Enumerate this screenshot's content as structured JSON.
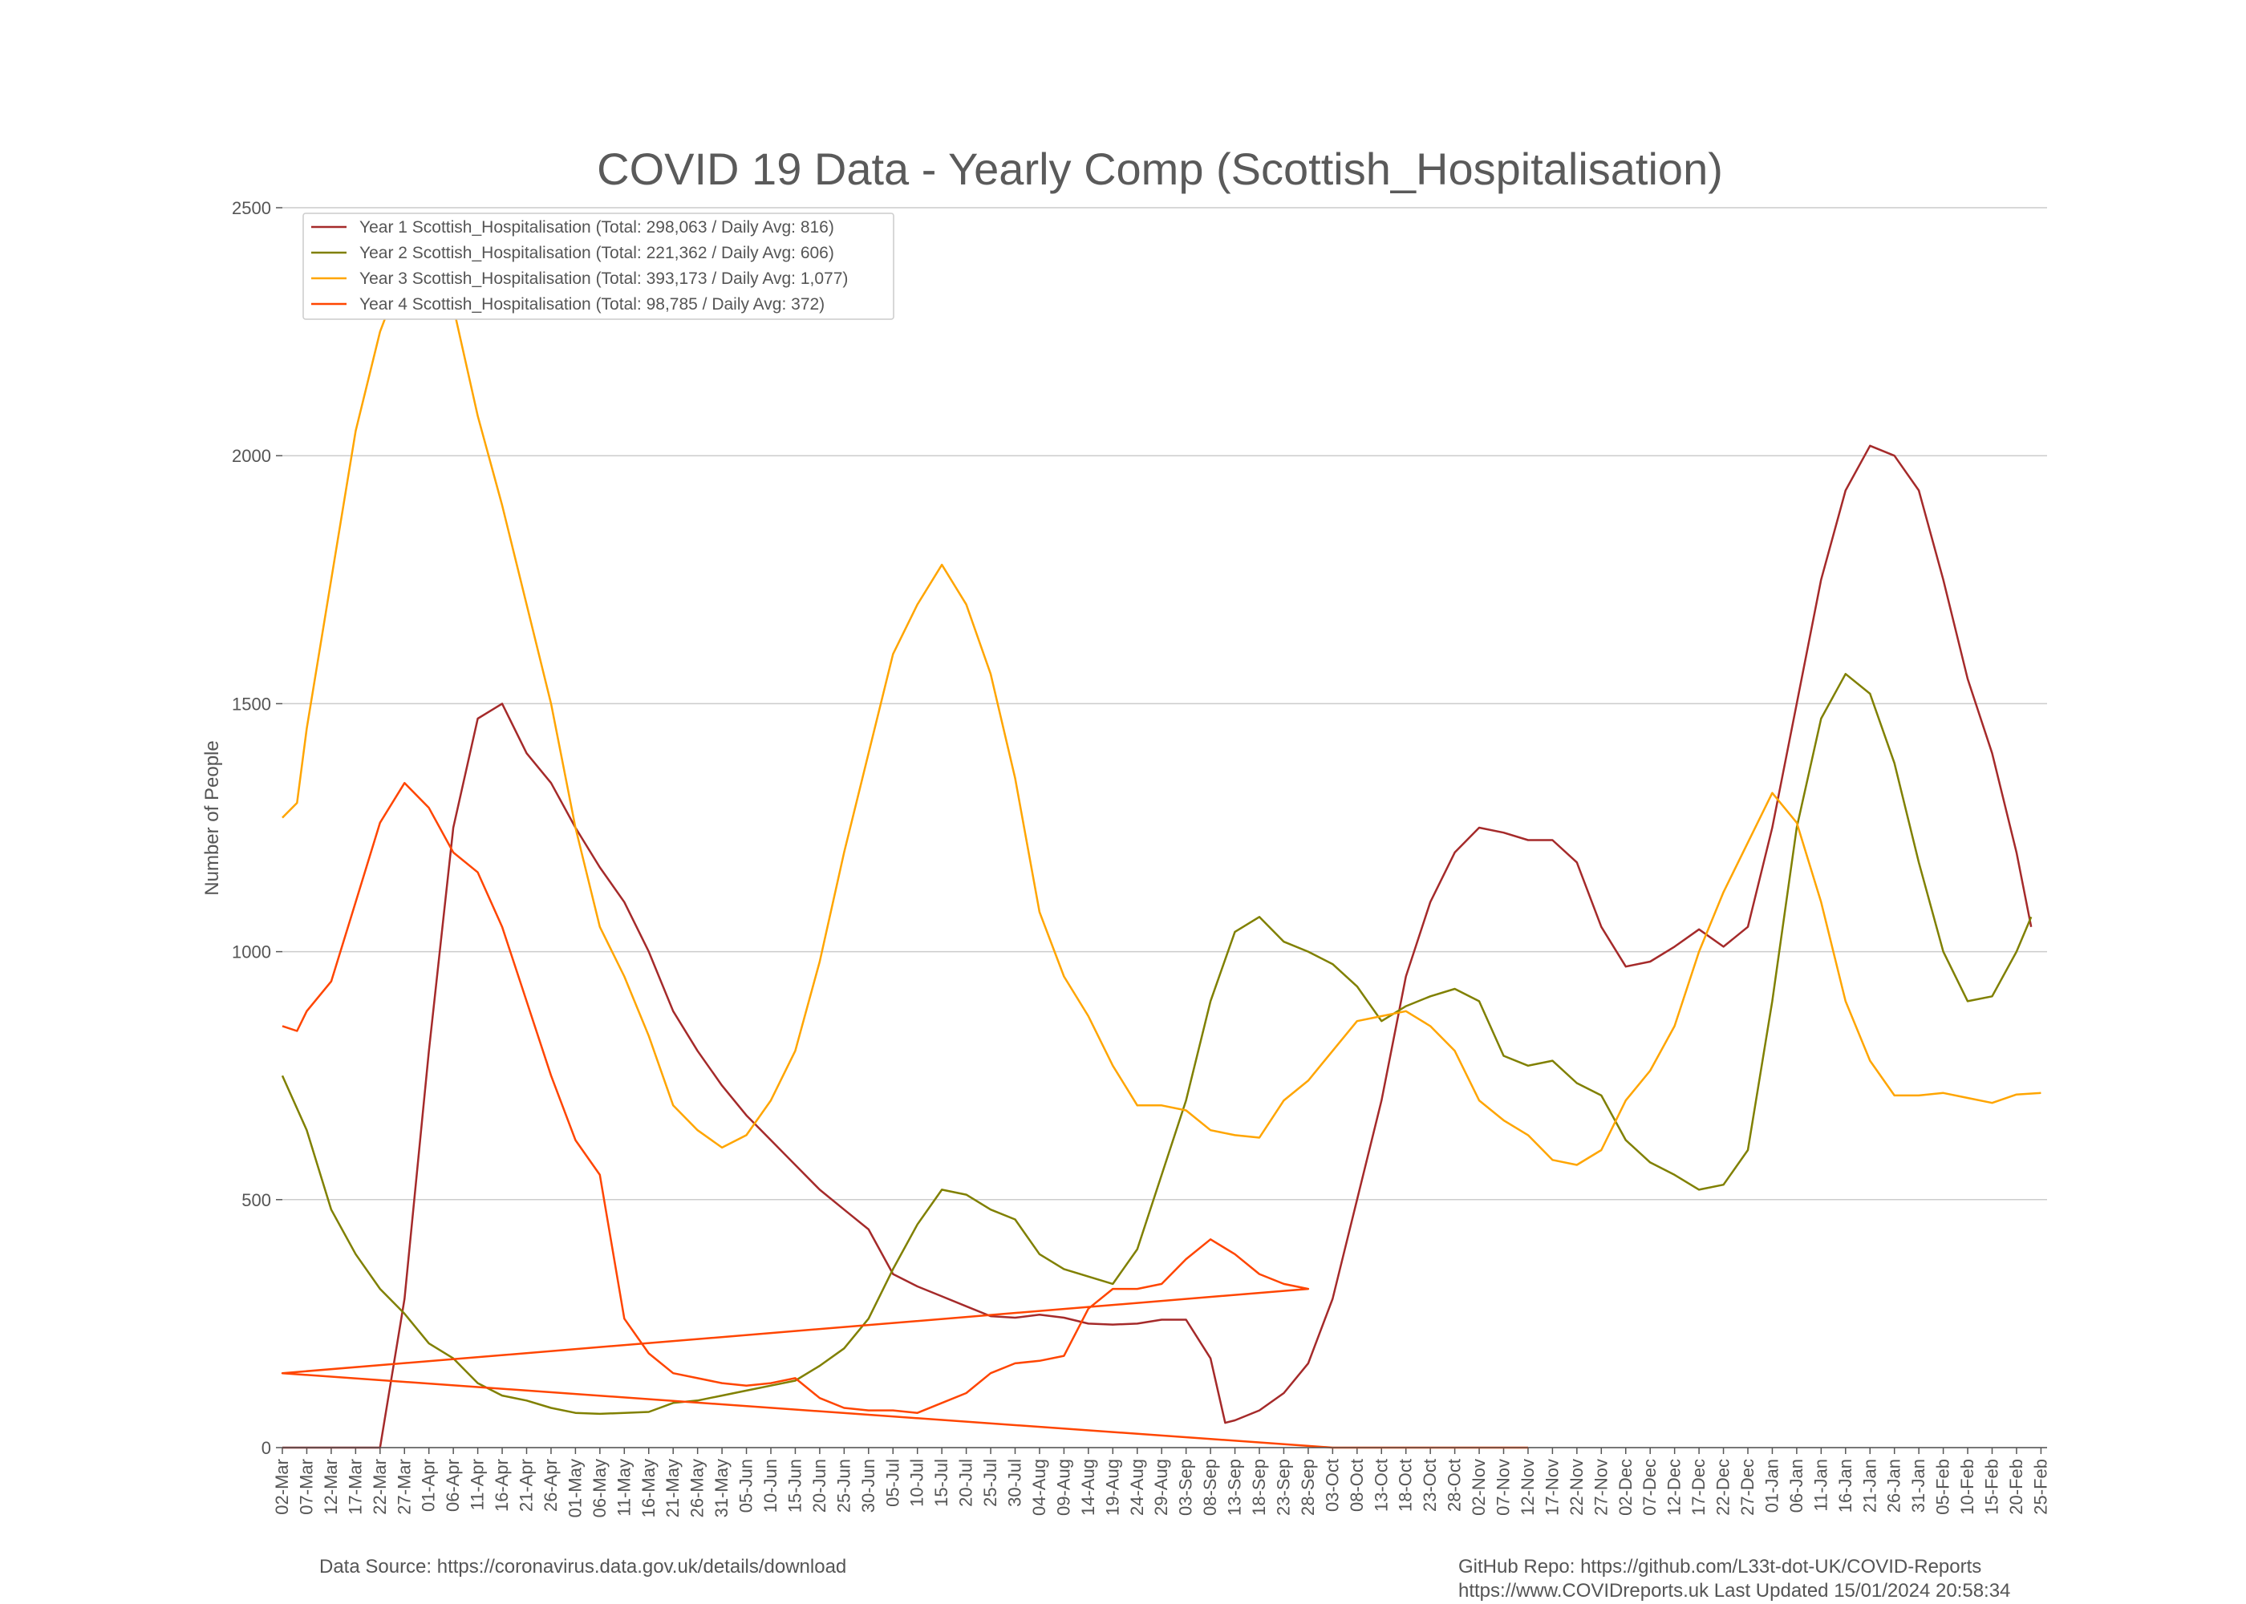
{
  "chart_data": {
    "type": "line",
    "title": "COVID 19 Data - Yearly Comp (Scottish_Hospitalisation)",
    "xlabel": "",
    "ylabel": "Number of People",
    "ylim": [
      0,
      2500
    ],
    "yticks": [
      0,
      500,
      1000,
      1500,
      2000,
      2500
    ],
    "grid": "horizontal",
    "legend_position": "top-left",
    "x_tick_labels": [
      "02-Mar",
      "07-Mar",
      "12-Mar",
      "17-Mar",
      "22-Mar",
      "27-Mar",
      "01-Apr",
      "06-Apr",
      "11-Apr",
      "16-Apr",
      "21-Apr",
      "26-Apr",
      "01-May",
      "06-May",
      "11-May",
      "16-May",
      "21-May",
      "26-May",
      "31-May",
      "05-Jun",
      "10-Jun",
      "15-Jun",
      "20-Jun",
      "25-Jun",
      "30-Jun",
      "05-Jul",
      "10-Jul",
      "15-Jul",
      "20-Jul",
      "25-Jul",
      "30-Jul",
      "04-Aug",
      "09-Aug",
      "14-Aug",
      "19-Aug",
      "24-Aug",
      "29-Aug",
      "03-Sep",
      "08-Sep",
      "13-Sep",
      "18-Sep",
      "23-Sep",
      "28-Sep",
      "03-Oct",
      "08-Oct",
      "13-Oct",
      "18-Oct",
      "23-Oct",
      "28-Oct",
      "02-Nov",
      "07-Nov",
      "12-Nov",
      "17-Nov",
      "22-Nov",
      "27-Nov",
      "02-Dec",
      "07-Dec",
      "12-Dec",
      "17-Dec",
      "22-Dec",
      "27-Dec",
      "01-Jan",
      "06-Jan",
      "11-Jan",
      "16-Jan",
      "21-Jan",
      "26-Jan",
      "31-Jan",
      "05-Feb",
      "10-Feb",
      "15-Feb",
      "20-Feb",
      "25-Feb"
    ],
    "series": [
      {
        "name": "Year 1 Scottish_Hospitalisation (Total: 298,063 / Daily Avg: 816)",
        "color": "#a52a2a",
        "points": [
          [
            "02-Mar",
            0
          ],
          [
            "22-Mar",
            0
          ],
          [
            "27-Mar",
            300
          ],
          [
            "01-Apr",
            800
          ],
          [
            "06-Apr",
            1250
          ],
          [
            "11-Apr",
            1470
          ],
          [
            "16-Apr",
            1500
          ],
          [
            "21-Apr",
            1400
          ],
          [
            "26-Apr",
            1340
          ],
          [
            "01-May",
            1250
          ],
          [
            "06-May",
            1170
          ],
          [
            "11-May",
            1100
          ],
          [
            "16-May",
            1000
          ],
          [
            "21-May",
            880
          ],
          [
            "26-May",
            800
          ],
          [
            "31-May",
            730
          ],
          [
            "05-Jun",
            670
          ],
          [
            "10-Jun",
            620
          ],
          [
            "15-Jun",
            570
          ],
          [
            "20-Jun",
            520
          ],
          [
            "25-Jun",
            480
          ],
          [
            "30-Jun",
            440
          ],
          [
            "05-Jul",
            350
          ],
          [
            "10-Jul",
            325
          ],
          [
            "15-Jul",
            305
          ],
          [
            "20-Jul",
            285
          ],
          [
            "25-Jul",
            265
          ],
          [
            "30-Jul",
            262
          ],
          [
            "04-Aug",
            268
          ],
          [
            "09-Aug",
            262
          ],
          [
            "14-Aug",
            250
          ],
          [
            "19-Aug",
            248
          ],
          [
            "24-Aug",
            250
          ],
          [
            "29-Aug",
            258
          ],
          [
            "03-Sep",
            258
          ],
          [
            "08-Sep",
            180
          ],
          [
            "11-Sep",
            50
          ],
          [
            "13-Sep",
            55
          ],
          [
            "18-Sep",
            75
          ],
          [
            "23-Sep",
            110
          ],
          [
            "28-Sep",
            170
          ],
          [
            "03-Oct",
            300
          ],
          [
            "08-Oct",
            500
          ],
          [
            "13-Oct",
            700
          ],
          [
            "18-Oct",
            950
          ],
          [
            "23-Oct",
            1100
          ],
          [
            "28-Oct",
            1200
          ],
          [
            "02-Nov",
            1250
          ],
          [
            "07-Nov",
            1240
          ],
          [
            "12-Nov",
            1225
          ],
          [
            "17-Nov",
            1225
          ],
          [
            "22-Nov",
            1180
          ],
          [
            "27-Nov",
            1050
          ],
          [
            "02-Dec",
            970
          ],
          [
            "07-Dec",
            980
          ],
          [
            "12-Dec",
            1010
          ],
          [
            "17-Dec",
            1045
          ],
          [
            "22-Dec",
            1010
          ],
          [
            "27-Dec",
            1050
          ],
          [
            "01-Jan",
            1250
          ],
          [
            "06-Jan",
            1500
          ],
          [
            "11-Jan",
            1750
          ],
          [
            "16-Jan",
            1930
          ],
          [
            "21-Jan",
            2020
          ],
          [
            "26-Jan",
            2000
          ],
          [
            "31-Jan",
            1930
          ],
          [
            "05-Feb",
            1750
          ],
          [
            "10-Feb",
            1550
          ],
          [
            "15-Feb",
            1400
          ],
          [
            "20-Feb",
            1200
          ],
          [
            "23-Feb",
            1050
          ]
        ]
      },
      {
        "name": "Year 2 Scottish_Hospitalisation (Total: 221,362 / Daily Avg: 606)",
        "color": "#808000",
        "points": [
          [
            "02-Mar",
            750
          ],
          [
            "07-Mar",
            640
          ],
          [
            "12-Mar",
            480
          ],
          [
            "17-Mar",
            390
          ],
          [
            "22-Mar",
            320
          ],
          [
            "27-Mar",
            270
          ],
          [
            "01-Apr",
            210
          ],
          [
            "06-Apr",
            180
          ],
          [
            "11-Apr",
            130
          ],
          [
            "16-Apr",
            105
          ],
          [
            "21-Apr",
            95
          ],
          [
            "26-Apr",
            80
          ],
          [
            "01-May",
            70
          ],
          [
            "06-May",
            68
          ],
          [
            "11-May",
            70
          ],
          [
            "16-May",
            72
          ],
          [
            "21-May",
            90
          ],
          [
            "26-May",
            95
          ],
          [
            "31-May",
            105
          ],
          [
            "05-Jun",
            115
          ],
          [
            "10-Jun",
            125
          ],
          [
            "15-Jun",
            135
          ],
          [
            "20-Jun",
            165
          ],
          [
            "25-Jun",
            200
          ],
          [
            "30-Jun",
            260
          ],
          [
            "05-Jul",
            360
          ],
          [
            "10-Jul",
            450
          ],
          [
            "15-Jul",
            520
          ],
          [
            "20-Jul",
            510
          ],
          [
            "25-Jul",
            480
          ],
          [
            "30-Jul",
            460
          ],
          [
            "04-Aug",
            390
          ],
          [
            "09-Aug",
            360
          ],
          [
            "14-Aug",
            345
          ],
          [
            "19-Aug",
            330
          ],
          [
            "24-Aug",
            400
          ],
          [
            "29-Aug",
            550
          ],
          [
            "03-Sep",
            700
          ],
          [
            "08-Sep",
            900
          ],
          [
            "13-Sep",
            1040
          ],
          [
            "18-Sep",
            1070
          ],
          [
            "23-Sep",
            1020
          ],
          [
            "28-Sep",
            1000
          ],
          [
            "03-Oct",
            975
          ],
          [
            "08-Oct",
            930
          ],
          [
            "13-Oct",
            860
          ],
          [
            "18-Oct",
            890
          ],
          [
            "23-Oct",
            910
          ],
          [
            "28-Oct",
            925
          ],
          [
            "02-Nov",
            900
          ],
          [
            "07-Nov",
            790
          ],
          [
            "12-Nov",
            770
          ],
          [
            "17-Nov",
            780
          ],
          [
            "22-Nov",
            735
          ],
          [
            "27-Nov",
            710
          ],
          [
            "02-Dec",
            620
          ],
          [
            "07-Dec",
            575
          ],
          [
            "12-Dec",
            550
          ],
          [
            "17-Dec",
            520
          ],
          [
            "22-Dec",
            530
          ],
          [
            "27-Dec",
            600
          ],
          [
            "01-Jan",
            900
          ],
          [
            "06-Jan",
            1250
          ],
          [
            "11-Jan",
            1470
          ],
          [
            "16-Jan",
            1560
          ],
          [
            "21-Jan",
            1520
          ],
          [
            "26-Jan",
            1380
          ],
          [
            "31-Jan",
            1180
          ],
          [
            "05-Feb",
            1000
          ],
          [
            "10-Feb",
            900
          ],
          [
            "15-Feb",
            910
          ],
          [
            "20-Feb",
            1000
          ],
          [
            "23-Feb",
            1070
          ]
        ]
      },
      {
        "name": "Year 3 Scottish_Hospitalisation (Total: 393,173 / Daily Avg: 1,077)",
        "color": "#ffa500",
        "points": [
          [
            "02-Mar",
            1270
          ],
          [
            "05-Mar",
            1300
          ],
          [
            "07-Mar",
            1450
          ],
          [
            "12-Mar",
            1750
          ],
          [
            "17-Mar",
            2050
          ],
          [
            "22-Mar",
            2250
          ],
          [
            "27-Mar",
            2380
          ],
          [
            "01-Apr",
            2420
          ],
          [
            "06-Apr",
            2300
          ],
          [
            "11-Apr",
            2080
          ],
          [
            "16-Apr",
            1900
          ],
          [
            "21-Apr",
            1700
          ],
          [
            "26-Apr",
            1500
          ],
          [
            "01-May",
            1250
          ],
          [
            "06-May",
            1050
          ],
          [
            "11-May",
            950
          ],
          [
            "16-May",
            830
          ],
          [
            "21-May",
            690
          ],
          [
            "26-May",
            640
          ],
          [
            "31-May",
            605
          ],
          [
            "05-Jun",
            630
          ],
          [
            "10-Jun",
            700
          ],
          [
            "15-Jun",
            800
          ],
          [
            "20-Jun",
            980
          ],
          [
            "25-Jun",
            1200
          ],
          [
            "30-Jun",
            1400
          ],
          [
            "05-Jul",
            1600
          ],
          [
            "10-Jul",
            1700
          ],
          [
            "15-Jul",
            1780
          ],
          [
            "20-Jul",
            1700
          ],
          [
            "25-Jul",
            1560
          ],
          [
            "30-Jul",
            1350
          ],
          [
            "04-Aug",
            1080
          ],
          [
            "09-Aug",
            950
          ],
          [
            "14-Aug",
            870
          ],
          [
            "19-Aug",
            770
          ],
          [
            "24-Aug",
            690
          ],
          [
            "29-Aug",
            690
          ],
          [
            "03-Sep",
            680
          ],
          [
            "08-Sep",
            640
          ],
          [
            "13-Sep",
            630
          ],
          [
            "18-Sep",
            625
          ],
          [
            "23-Sep",
            700
          ],
          [
            "28-Sep",
            740
          ],
          [
            "03-Oct",
            800
          ],
          [
            "08-Oct",
            860
          ],
          [
            "13-Oct",
            870
          ],
          [
            "18-Oct",
            880
          ],
          [
            "23-Oct",
            850
          ],
          [
            "28-Oct",
            800
          ],
          [
            "02-Nov",
            700
          ],
          [
            "07-Nov",
            660
          ],
          [
            "12-Nov",
            630
          ],
          [
            "17-Nov",
            580
          ],
          [
            "22-Nov",
            570
          ],
          [
            "27-Nov",
            600
          ],
          [
            "02-Dec",
            700
          ],
          [
            "07-Dec",
            760
          ],
          [
            "12-Dec",
            850
          ],
          [
            "17-Dec",
            1000
          ],
          [
            "22-Dec",
            1120
          ],
          [
            "27-Dec",
            1220
          ],
          [
            "01-Jan",
            1320
          ],
          [
            "06-Jan",
            1260
          ],
          [
            "11-Jan",
            1100
          ],
          [
            "16-Jan",
            900
          ],
          [
            "21-Jan",
            780
          ],
          [
            "26-Jan",
            710
          ],
          [
            "31-Jan",
            710
          ],
          [
            "05-Feb",
            715
          ],
          [
            "10-Feb",
            705
          ],
          [
            "15-Feb",
            695
          ],
          [
            "20-Feb",
            712
          ],
          [
            "25-Feb",
            715
          ]
        ]
      },
      {
        "name": "Year 4 Scottish_Hospitalisation (Total: 98,785 / Daily Avg: 372)",
        "color": "#ff4500",
        "points": [
          [
            "02-Mar",
            850
          ],
          [
            "05-Mar",
            840
          ],
          [
            "07-Mar",
            880
          ],
          [
            "12-Mar",
            940
          ],
          [
            "17-Mar",
            1100
          ],
          [
            "22-Mar",
            1260
          ],
          [
            "27-Mar",
            1340
          ],
          [
            "01-Apr",
            1290
          ],
          [
            "06-Apr",
            1200
          ],
          [
            "11-Apr",
            1160
          ],
          [
            "16-Apr",
            1050
          ],
          [
            "21-Apr",
            900
          ],
          [
            "26-Apr",
            750
          ],
          [
            "01-May",
            620
          ],
          [
            "06-May",
            550
          ],
          [
            "11-May",
            260
          ],
          [
            "16-May",
            190
          ],
          [
            "21-May",
            150
          ],
          [
            "26-May",
            140
          ],
          [
            "31-May",
            130
          ],
          [
            "05-Jun",
            125
          ],
          [
            "10-Jun",
            130
          ],
          [
            "15-Jun",
            140
          ],
          [
            "20-Jun",
            100
          ],
          [
            "25-Jun",
            80
          ],
          [
            "30-Jun",
            75
          ],
          [
            "05-Jul",
            75
          ],
          [
            "10-Jul",
            70
          ],
          [
            "15-Jul",
            90
          ],
          [
            "20-Jul",
            110
          ],
          [
            "25-Jul",
            150
          ],
          [
            "30-Jul",
            170
          ],
          [
            "04-Aug",
            175
          ],
          [
            "09-Aug",
            185
          ],
          [
            "14-Aug",
            280
          ],
          [
            "19-Aug",
            320
          ],
          [
            "24-Aug",
            320
          ],
          [
            "29-Aug",
            330
          ],
          [
            "03-Sep",
            380
          ],
          [
            "08-Sep",
            420
          ],
          [
            "13-Sep",
            390
          ],
          [
            "18-Sep",
            350
          ],
          [
            "23-Sep",
            330
          ],
          [
            "28-Sep",
            320
          ],
          [
            "01-Oct",
            150
          ],
          [
            "03-Oct",
            0
          ],
          [
            "08-Oct",
            0
          ],
          [
            "13-Oct",
            0
          ],
          [
            "18-Oct",
            0
          ],
          [
            "23-Oct",
            0
          ],
          [
            "28-Oct",
            0
          ],
          [
            "02-Nov",
            0
          ],
          [
            "07-Nov",
            0
          ],
          [
            "12-Nov",
            0
          ]
        ]
      }
    ]
  },
  "footer": {
    "source": "Data Source: https://coronavirus.data.gov.uk/details/download",
    "repo": "GitHub Repo: https://github.com/L33t-dot-UK/COVID-Reports",
    "site_updated": "https://www.COVIDreports.uk   Last Updated 15/01/2024 20:58:34"
  }
}
